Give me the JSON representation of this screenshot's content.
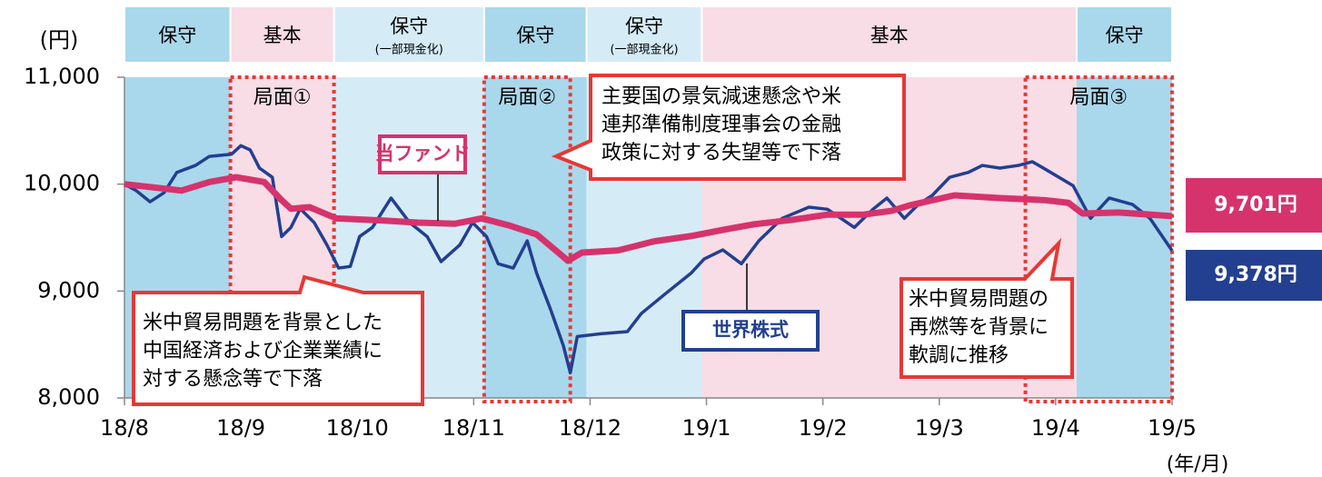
{
  "chart_data": {
    "type": "line",
    "y_axis_label": "(円)",
    "x_axis_label": "(年/月)",
    "xlim": [
      0,
      9
    ],
    "xticks": [
      {
        "value": 0,
        "label": "18/8"
      },
      {
        "value": 1,
        "label": "18/9"
      },
      {
        "value": 2,
        "label": "18/10"
      },
      {
        "value": 3,
        "label": "18/11"
      },
      {
        "value": 4,
        "label": "18/12"
      },
      {
        "value": 5,
        "label": "19/1"
      },
      {
        "value": 6,
        "label": "19/2"
      },
      {
        "value": 7,
        "label": "19/3"
      },
      {
        "value": 8,
        "label": "19/4"
      },
      {
        "value": 9,
        "label": "19/5"
      }
    ],
    "ylim": [
      8000,
      11000
    ],
    "yticks": [
      {
        "value": 8000,
        "label": "8,000"
      },
      {
        "value": 9000,
        "label": "9,000"
      },
      {
        "value": 10000,
        "label": "10,000"
      },
      {
        "value": 11000,
        "label": "11,000"
      }
    ],
    "bands": [
      {
        "label": "保守",
        "start": 0,
        "end": 0.91,
        "color": "#a9d8ec"
      },
      {
        "label": "基本",
        "start": 0.91,
        "end": 1.8,
        "color": "#f8dce6"
      },
      {
        "label": "保守",
        "sublabel": "(一部現金化)",
        "start": 1.8,
        "end": 3.09,
        "color": "#d5ecf7"
      },
      {
        "label": "保守",
        "start": 3.09,
        "end": 3.97,
        "color": "#a9d8ec"
      },
      {
        "label": "保守",
        "sublabel": "(一部現金化)",
        "start": 3.97,
        "end": 4.96,
        "color": "#d5ecf7"
      },
      {
        "label": "基本",
        "start": 4.96,
        "end": 8.18,
        "color": "#f8dce6"
      },
      {
        "label": "保守",
        "start": 8.18,
        "end": 9,
        "color": "#a9d8ec"
      }
    ],
    "phases": [
      {
        "label": "局面①",
        "start": 0.91,
        "end": 1.8
      },
      {
        "label": "局面②",
        "start": 3.09,
        "end": 3.83
      },
      {
        "label": "局面③",
        "start": 7.74,
        "end": 9
      }
    ],
    "series": [
      {
        "name": "世界株式",
        "color": "#233f8f",
        "end_label": "9,378円",
        "x": [
          0,
          0.1,
          0.22,
          0.34,
          0.45,
          0.61,
          0.73,
          0.92,
          1,
          1.08,
          1.16,
          1.27,
          1.35,
          1.43,
          1.51,
          1.63,
          1.74,
          1.84,
          1.94,
          2.02,
          2.13,
          2.29,
          2.45,
          2.6,
          2.72,
          2.88,
          2.99,
          3.11,
          3.21,
          3.34,
          3.46,
          3.54,
          3.66,
          3.77,
          3.83,
          3.89,
          4.09,
          4.32,
          4.44,
          4.63,
          4.87,
          4.98,
          5.14,
          5.3,
          5.45,
          5.65,
          5.88,
          6.04,
          6.27,
          6.43,
          6.55,
          6.7,
          6.82,
          6.94,
          7.09,
          7.25,
          7.37,
          7.52,
          7.68,
          7.8,
          7.91,
          8.15,
          8.3,
          8.46,
          8.66,
          8.81,
          9
        ],
        "values": [
          10000,
          9940,
          9835,
          9920,
          10110,
          10175,
          10260,
          10280,
          10360,
          10320,
          10150,
          10065,
          9510,
          9595,
          9770,
          9640,
          9430,
          9215,
          9230,
          9510,
          9595,
          9870,
          9640,
          9510,
          9275,
          9430,
          9640,
          9510,
          9255,
          9215,
          9470,
          9170,
          8830,
          8490,
          8235,
          8575,
          8600,
          8620,
          8790,
          8960,
          9170,
          9300,
          9385,
          9255,
          9470,
          9680,
          9785,
          9765,
          9595,
          9765,
          9870,
          9680,
          9810,
          9895,
          10065,
          10110,
          10175,
          10150,
          10175,
          10210,
          10140,
          9985,
          9680,
          9870,
          9810,
          9680,
          9378
        ]
      },
      {
        "name": "当ファンド",
        "color": "#d6336c",
        "end_label": "9,701円",
        "x": [
          0,
          0.49,
          0.73,
          0.96,
          1.2,
          1.35,
          1.43,
          1.59,
          1.82,
          2.21,
          2.52,
          2.84,
          3.07,
          3.3,
          3.54,
          3.7,
          3.81,
          3.93,
          4.24,
          4.55,
          4.87,
          5.18,
          5.41,
          5.73,
          6.04,
          6.35,
          6.59,
          6.74,
          7.13,
          7.52,
          7.91,
          8.11,
          8.23,
          8.54,
          9
        ],
        "values": [
          10000,
          9940,
          10020,
          10065,
          10020,
          9850,
          9770,
          9785,
          9680,
          9660,
          9640,
          9630,
          9680,
          9615,
          9530,
          9385,
          9283,
          9360,
          9380,
          9465,
          9515,
          9580,
          9625,
          9665,
          9715,
          9715,
          9750,
          9800,
          9895,
          9870,
          9850,
          9825,
          9725,
          9735,
          9701
        ]
      }
    ],
    "annotations": [
      [
        "米中貿易問題を背景とした",
        "中国経済および企業業績に",
        "対する懸念等で下落"
      ],
      [
        "主要国の景気減速懸念や米",
        "連邦準備制度理事会の金融",
        "政策に対する失望等で下落"
      ],
      [
        "米中貿易問題の",
        "再燃等を背景に",
        "軟調に推移"
      ]
    ]
  }
}
